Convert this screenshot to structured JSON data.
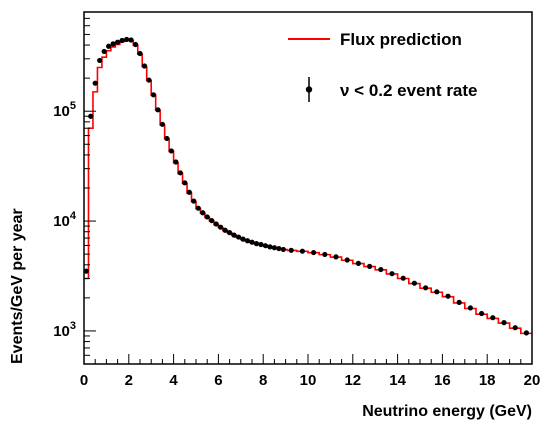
{
  "chart_data": {
    "type": "line",
    "title": "",
    "xlabel": "Neutrino energy (GeV)",
    "ylabel": "Events/GeV per year",
    "xlim": [
      0,
      20
    ],
    "ylim": [
      500,
      800000
    ],
    "yscale": "log",
    "grid": false,
    "legend_position": "top-right",
    "x_ticks": [
      "0",
      "2",
      "4",
      "6",
      "8",
      "10",
      "12",
      "14",
      "16",
      "18",
      "20"
    ],
    "y_ticks": [
      {
        "value": 1000,
        "base": "10",
        "exp": "3"
      },
      {
        "value": 10000,
        "base": "10",
        "exp": "4"
      },
      {
        "value": 100000,
        "base": "10",
        "exp": "5"
      }
    ],
    "colors": {
      "flux": "#ff0000",
      "event_rate": "#000000"
    },
    "series": [
      {
        "name": "Flux prediction",
        "style": "step",
        "x": [
          0.1,
          0.3,
          0.5,
          0.7,
          0.9,
          1.1,
          1.3,
          1.5,
          1.7,
          1.9,
          2.1,
          2.3,
          2.5,
          2.7,
          2.9,
          3.1,
          3.3,
          3.5,
          3.7,
          3.9,
          4.1,
          4.3,
          4.5,
          4.7,
          4.9,
          5.1,
          5.3,
          5.5,
          5.7,
          5.9,
          6.1,
          6.3,
          6.5,
          6.7,
          6.9,
          7.1,
          7.3,
          7.5,
          7.7,
          7.9,
          8.1,
          8.3,
          8.5,
          8.7,
          8.9,
          9.25,
          9.75,
          10.25,
          10.75,
          11.25,
          11.75,
          12.25,
          12.75,
          13.25,
          13.75,
          14.25,
          14.75,
          15.25,
          15.75,
          16.25,
          16.75,
          17.25,
          17.75,
          18.25,
          18.75,
          19.25,
          19.75
        ],
        "y": [
          3000,
          70000,
          150000,
          250000,
          310000,
          355000,
          385000,
          405000,
          430000,
          445000,
          440000,
          400000,
          330000,
          255000,
          190000,
          140000,
          102000,
          75000,
          56000,
          43000,
          34000,
          27000,
          22000,
          18000,
          15000,
          13000,
          11800,
          10800,
          10000,
          9300,
          8700,
          8200,
          7800,
          7400,
          7100,
          6800,
          6600,
          6400,
          6200,
          6100,
          5950,
          5800,
          5700,
          5600,
          5500,
          5400,
          5300,
          5150,
          4950,
          4700,
          4400,
          4100,
          3850,
          3600,
          3300,
          3000,
          2700,
          2450,
          2250,
          2050,
          1800,
          1600,
          1420,
          1300,
          1180,
          1060,
          950
        ]
      },
      {
        "name": "ν < 0.2 event rate",
        "style": "points-with-errors",
        "x": [
          0.1,
          0.3,
          0.5,
          0.7,
          0.9,
          1.1,
          1.3,
          1.5,
          1.7,
          1.9,
          2.1,
          2.3,
          2.5,
          2.7,
          2.9,
          3.1,
          3.3,
          3.5,
          3.7,
          3.9,
          4.1,
          4.3,
          4.5,
          4.7,
          4.9,
          5.1,
          5.3,
          5.5,
          5.7,
          5.9,
          6.1,
          6.3,
          6.5,
          6.7,
          6.9,
          7.1,
          7.3,
          7.5,
          7.7,
          7.9,
          8.1,
          8.3,
          8.5,
          8.7,
          8.9,
          9.25,
          9.75,
          10.25,
          10.75,
          11.25,
          11.75,
          12.25,
          12.75,
          13.25,
          13.75,
          14.25,
          14.75,
          15.25,
          15.75,
          16.25,
          16.75,
          17.25,
          17.75,
          18.25,
          18.75,
          19.25,
          19.75
        ],
        "y": [
          3500,
          90000,
          180000,
          290000,
          350000,
          390000,
          410000,
          425000,
          440000,
          450000,
          445000,
          405000,
          335000,
          258000,
          192000,
          141000,
          103000,
          76000,
          56500,
          43500,
          34500,
          27500,
          22300,
          18300,
          15200,
          13100,
          11900,
          10900,
          10100,
          9400,
          8800,
          8250,
          7850,
          7450,
          7150,
          6850,
          6620,
          6420,
          6230,
          6120,
          5970,
          5820,
          5720,
          5620,
          5520,
          5420,
          5320,
          5170,
          4970,
          4720,
          4420,
          4120,
          3870,
          3620,
          3320,
          3020,
          2720,
          2470,
          2270,
          2070,
          1820,
          1620,
          1440,
          1320,
          1190,
          1070,
          960
        ]
      }
    ]
  }
}
